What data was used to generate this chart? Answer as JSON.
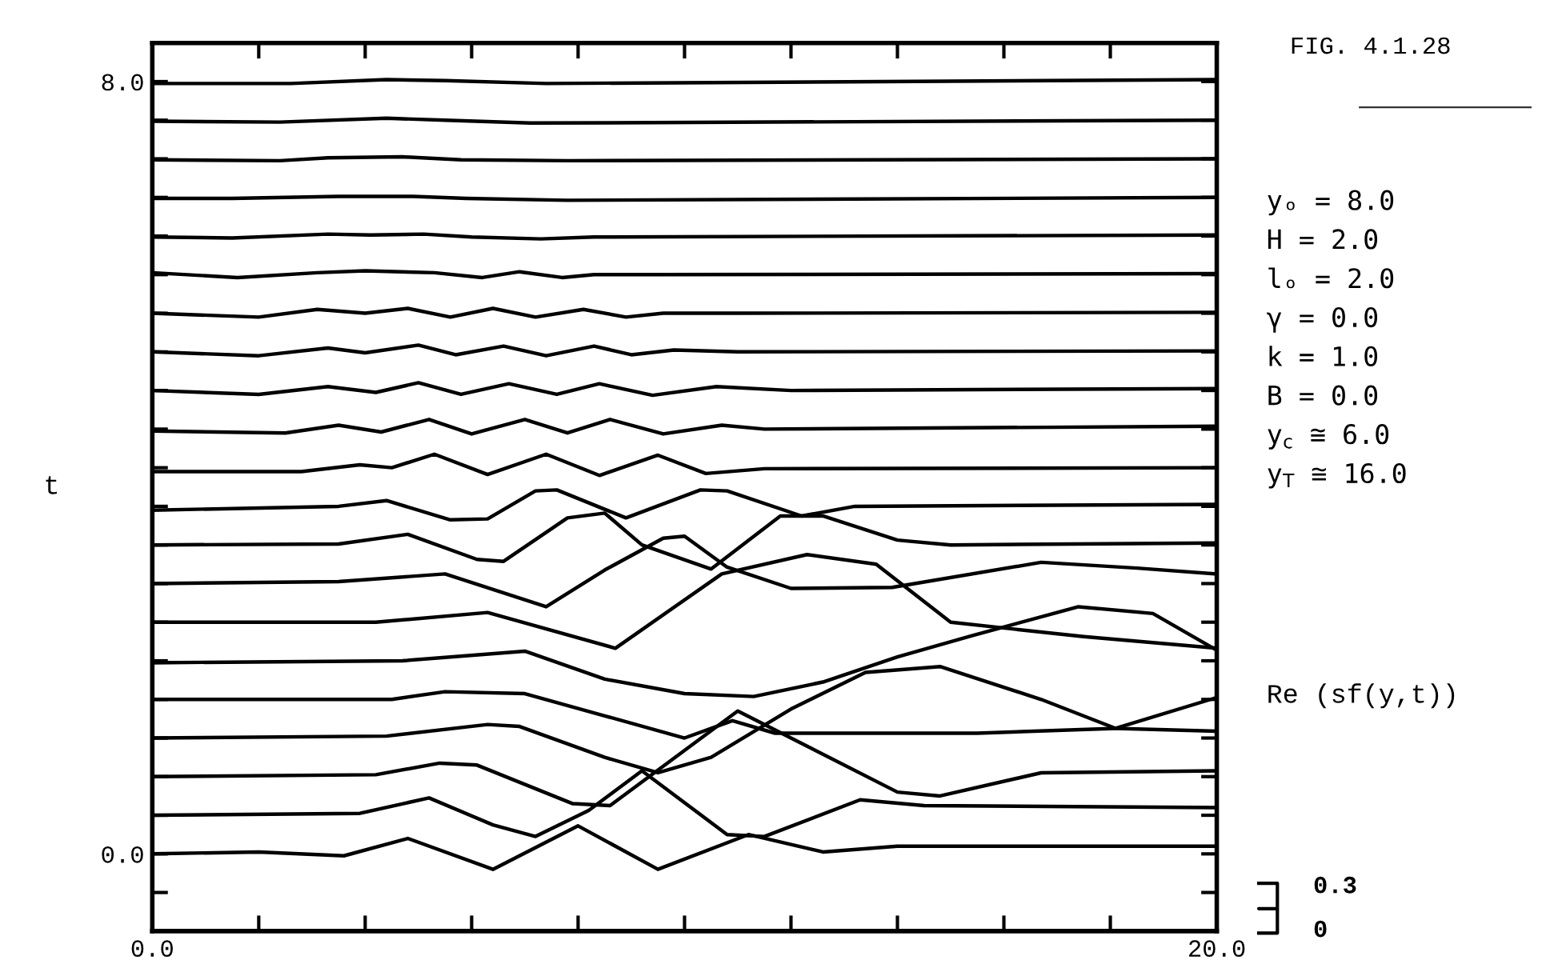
{
  "chart_data": {
    "type": "line",
    "ylabel": "t",
    "xlim": [
      0,
      20
    ],
    "ylim": [
      -0.8,
      8.4
    ],
    "xticks": [
      {
        "value": 0,
        "label": "0.0"
      },
      {
        "value": 2,
        "label": null
      },
      {
        "value": 4,
        "label": null
      },
      {
        "value": 6,
        "label": null
      },
      {
        "value": 8,
        "label": null
      },
      {
        "value": 10,
        "label": null
      },
      {
        "value": 12,
        "label": null
      },
      {
        "value": 14,
        "label": null
      },
      {
        "value": 16,
        "label": null
      },
      {
        "value": 18,
        "label": null
      },
      {
        "value": 20,
        "label": "20.0"
      }
    ],
    "yticks": [
      {
        "value": -0.4,
        "label": null
      },
      {
        "value": 0,
        "label": "0.0"
      },
      {
        "value": 0.4,
        "label": null
      },
      {
        "value": 0.8,
        "label": null
      },
      {
        "value": 1.2,
        "label": null
      },
      {
        "value": 1.6,
        "label": null
      },
      {
        "value": 2.0,
        "label": null
      },
      {
        "value": 2.4,
        "label": null
      },
      {
        "value": 2.8,
        "label": null
      },
      {
        "value": 3.2,
        "label": null
      },
      {
        "value": 3.6,
        "label": null
      },
      {
        "value": 4.0,
        "label": null
      },
      {
        "value": 4.4,
        "label": null
      },
      {
        "value": 4.8,
        "label": null
      },
      {
        "value": 5.2,
        "label": null
      },
      {
        "value": 5.6,
        "label": null
      },
      {
        "value": 6.0,
        "label": null
      },
      {
        "value": 6.4,
        "label": null
      },
      {
        "value": 6.8,
        "label": null
      },
      {
        "value": 7.2,
        "label": null
      },
      {
        "value": 7.6,
        "label": null
      },
      {
        "value": 8.0,
        "label": "8.0"
      }
    ],
    "grid": false,
    "legend": false,
    "marker": "none",
    "line_style": "solid",
    "annotations": [
      "FIG. 4.1.28",
      "yₒ = 8.0",
      "H = 2.0",
      "lₒ = 2.0",
      "γ = 0.0",
      "k = 1.0",
      "B = 0.0",
      "y$_{c}$ ≅ 6.0",
      "y$_{T}$ ≅ 16.0",
      "Re (sf(y,t))",
      "0.3",
      "0"
    ],
    "series": [
      {
        "color": "#000000",
        "x": [
          0,
          2,
          3.6,
          4.8,
          6.4,
          8.0,
          9.5,
          11.2,
          12.6,
          14,
          20
        ],
        "values": [
          0,
          0.02,
          -0.02,
          0.16,
          -0.16,
          0.29,
          -0.16,
          0.2,
          0.02,
          0.08,
          0.08
        ]
      },
      {
        "color": "#000000",
        "x": [
          0,
          3.9,
          5.2,
          6.4,
          7.2,
          8.2,
          9.2,
          10.8,
          11.5,
          13.3,
          14.5,
          20
        ],
        "values": [
          0.4,
          0.42,
          0.58,
          0.3,
          0.18,
          0.45,
          0.86,
          0.2,
          0.18,
          0.56,
          0.5,
          0.48
        ]
      },
      {
        "color": "#000000",
        "x": [
          0,
          4.2,
          5.4,
          6.1,
          7.9,
          8.6,
          11.0,
          14.0,
          14.8,
          16.7,
          20
        ],
        "values": [
          0.8,
          0.82,
          0.94,
          0.92,
          0.52,
          0.5,
          1.48,
          0.64,
          0.6,
          0.84,
          0.86
        ]
      },
      {
        "color": "#000000",
        "x": [
          0,
          4.4,
          6.3,
          6.9,
          8.5,
          9.5,
          10.5,
          12.0,
          13.4,
          14.8,
          16.7,
          18.1,
          20
        ],
        "values": [
          1.2,
          1.22,
          1.34,
          1.32,
          1.0,
          0.84,
          1.0,
          1.5,
          1.88,
          1.94,
          1.6,
          1.3,
          1.27
        ]
      },
      {
        "color": "#000000",
        "x": [
          0,
          4.5,
          5.5,
          7.0,
          8.5,
          10.0,
          10.9,
          11.7,
          13.5,
          15.5,
          18.1,
          20
        ],
        "values": [
          1.6,
          1.6,
          1.68,
          1.66,
          1.43,
          1.2,
          1.38,
          1.25,
          1.25,
          1.25,
          1.3,
          1.62
        ]
      },
      {
        "color": "#000000",
        "x": [
          0,
          4.7,
          7.0,
          8.5,
          10,
          11.3,
          12.6,
          14,
          15.4,
          17.4,
          18.8,
          20
        ],
        "values": [
          1.98,
          2.0,
          2.1,
          1.81,
          1.66,
          1.63,
          1.78,
          2.04,
          2.26,
          2.56,
          2.49,
          2.11
        ]
      },
      {
        "color": "#000000",
        "x": [
          0,
          4.2,
          6.3,
          8.7,
          10.7,
          12.3,
          13.6,
          15.0,
          17.5,
          20
        ],
        "values": [
          2.4,
          2.4,
          2.5,
          2.13,
          2.9,
          3.1,
          3.0,
          2.4,
          2.25,
          2.13
        ]
      },
      {
        "color": "#000000",
        "x": [
          0,
          3.5,
          5.5,
          7.4,
          8.5,
          9.6,
          10.0,
          10.8,
          12.0,
          13.9,
          16.7,
          18.5,
          20
        ],
        "values": [
          2.8,
          2.82,
          2.9,
          2.56,
          2.94,
          3.27,
          3.29,
          2.97,
          2.75,
          2.76,
          3.02,
          2.96,
          2.9
        ]
      },
      {
        "color": "#000000",
        "x": [
          0,
          3.5,
          4.8,
          6.1,
          6.6,
          7.8,
          8.5,
          9.2,
          10.5,
          11.8,
          12.6,
          14.0,
          15.0,
          20
        ],
        "values": [
          3.2,
          3.21,
          3.31,
          3.05,
          3.03,
          3.48,
          3.53,
          3.2,
          2.95,
          3.5,
          3.5,
          3.25,
          3.2,
          3.22
        ]
      },
      {
        "color": "#000000",
        "x": [
          0,
          3.5,
          4.4,
          5.6,
          6.3,
          7.2,
          7.6,
          8.9,
          10.3,
          10.8,
          12.2,
          13.2,
          20
        ],
        "values": [
          3.56,
          3.6,
          3.66,
          3.46,
          3.47,
          3.76,
          3.77,
          3.48,
          3.77,
          3.76,
          3.5,
          3.6,
          3.62
        ]
      },
      {
        "color": "#000000",
        "x": [
          0,
          2.8,
          3.9,
          4.5,
          5.3,
          6.3,
          7.4,
          8.4,
          9.5,
          10.4,
          11.5,
          20
        ],
        "values": [
          3.96,
          3.96,
          4.03,
          4.0,
          4.14,
          3.93,
          4.14,
          3.92,
          4.13,
          3.94,
          3.99,
          4.0
        ]
      },
      {
        "color": "#000000",
        "x": [
          0,
          2.5,
          3.5,
          4.3,
          5.2,
          6.0,
          7.0,
          7.8,
          8.6,
          9.6,
          10.7,
          11.5,
          20
        ],
        "values": [
          4.38,
          4.36,
          4.44,
          4.37,
          4.5,
          4.35,
          4.5,
          4.36,
          4.5,
          4.35,
          4.44,
          4.4,
          4.43
        ]
      },
      {
        "color": "#000000",
        "x": [
          0,
          2.0,
          3.3,
          4.2,
          5.0,
          5.8,
          6.7,
          7.6,
          8.4,
          9.4,
          10.6,
          12,
          20
        ],
        "values": [
          4.8,
          4.76,
          4.84,
          4.78,
          4.88,
          4.76,
          4.87,
          4.76,
          4.87,
          4.75,
          4.84,
          4.8,
          4.82
        ]
      },
      {
        "color": "#000000",
        "x": [
          0,
          2,
          3.3,
          4.0,
          5.0,
          5.7,
          6.6,
          7.4,
          8.3,
          9.0,
          9.8,
          11,
          20
        ],
        "values": [
          5.2,
          5.16,
          5.24,
          5.19,
          5.27,
          5.17,
          5.26,
          5.16,
          5.26,
          5.17,
          5.22,
          5.2,
          5.21
        ]
      },
      {
        "color": "#000000",
        "x": [
          0,
          2.0,
          3.1,
          4.0,
          4.8,
          5.6,
          6.4,
          7.2,
          8.1,
          8.9,
          9.6,
          11,
          20
        ],
        "values": [
          5.6,
          5.56,
          5.64,
          5.6,
          5.65,
          5.56,
          5.65,
          5.56,
          5.64,
          5.56,
          5.6,
          5.6,
          5.61
        ]
      },
      {
        "color": "#000000",
        "x": [
          0,
          1.6,
          3.1,
          4.0,
          5.3,
          6.2,
          6.9,
          7.7,
          8.3,
          9.5,
          20
        ],
        "values": [
          6.02,
          5.97,
          6.02,
          6.04,
          6.02,
          5.97,
          6.03,
          5.97,
          6.0,
          6.0,
          6.01
        ]
      },
      {
        "color": "#000000",
        "x": [
          0,
          1.5,
          3.3,
          4.1,
          5.1,
          6.0,
          7.3,
          8.3,
          20
        ],
        "values": [
          6.39,
          6.38,
          6.42,
          6.41,
          6.42,
          6.39,
          6.37,
          6.39,
          6.41
        ]
      },
      {
        "color": "#000000",
        "x": [
          0,
          1.5,
          3.5,
          4.9,
          5.9,
          7.8,
          20
        ],
        "values": [
          6.79,
          6.79,
          6.81,
          6.81,
          6.79,
          6.77,
          6.8
        ]
      },
      {
        "color": "#000000",
        "x": [
          0,
          2.4,
          3.3,
          4.7,
          5.8,
          7.8,
          20
        ],
        "values": [
          7.19,
          7.18,
          7.21,
          7.22,
          7.19,
          7.18,
          7.2
        ]
      },
      {
        "color": "#000000",
        "x": [
          0,
          2.4,
          4.4,
          5.5,
          7.1,
          20
        ],
        "values": [
          7.59,
          7.58,
          7.62,
          7.6,
          7.57,
          7.6
        ]
      },
      {
        "color": "#000000",
        "x": [
          0,
          2.6,
          4.4,
          5.5,
          7.4,
          20
        ],
        "values": [
          7.98,
          7.98,
          8.02,
          8.01,
          7.98,
          8.02
        ]
      }
    ]
  }
}
